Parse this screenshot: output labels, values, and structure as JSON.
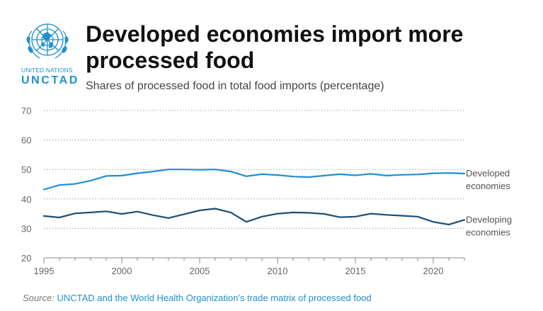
{
  "header": {
    "title": "Developed economies import more processed food",
    "subtitle": "Shares of processed food in total food imports (percentage)"
  },
  "logo": {
    "org_line": "UNITED NATIONS",
    "brand": "UNCTAD",
    "icon": "un-emblem-icon"
  },
  "source": {
    "label": "Source:",
    "text": "UNCTAD and the World Health Organization's trade matrix of processed food"
  },
  "colors": {
    "developed": "#1f8fd0",
    "developing": "#1b4f79",
    "grid": "#9a9a9a",
    "axis_text": "#666666"
  },
  "chart_data": {
    "type": "line",
    "title": "Developed economies import more processed food",
    "subtitle": "Shares of processed food in total food imports (percentage)",
    "xlabel": "",
    "ylabel": "",
    "x": [
      1995,
      1996,
      1997,
      1998,
      1999,
      2000,
      2001,
      2002,
      2003,
      2004,
      2005,
      2006,
      2007,
      2008,
      2009,
      2010,
      2011,
      2012,
      2013,
      2014,
      2015,
      2016,
      2017,
      2018,
      2019,
      2020,
      2021,
      2022
    ],
    "xticks": [
      1995,
      2000,
      2005,
      2010,
      2015,
      2020
    ],
    "xlim": [
      1995,
      2022
    ],
    "ylim": [
      20,
      70
    ],
    "yticks": [
      20,
      30,
      40,
      50,
      60,
      70
    ],
    "grid": true,
    "legend": "inline labels at line ends",
    "series": [
      {
        "name": "Developed economies",
        "label_lines": [
          "Developed",
          "economies"
        ],
        "color": "#1f8fd0",
        "values": [
          43.2,
          44.7,
          45.1,
          46.2,
          47.8,
          47.9,
          48.7,
          49.3,
          50.0,
          50.0,
          49.9,
          50.0,
          49.3,
          47.7,
          48.4,
          48.1,
          47.6,
          47.4,
          47.9,
          48.4,
          48.0,
          48.5,
          47.9,
          48.2,
          48.3,
          48.7,
          48.8,
          48.6
        ]
      },
      {
        "name": "Developing economies",
        "label_lines": [
          "Developing",
          "economies"
        ],
        "color": "#1b4f79",
        "values": [
          34.2,
          33.7,
          35.1,
          35.4,
          35.8,
          34.9,
          35.7,
          34.5,
          33.5,
          34.8,
          36.1,
          36.7,
          35.4,
          32.2,
          34.0,
          35.0,
          35.4,
          35.3,
          34.9,
          33.8,
          34.0,
          35.0,
          34.6,
          34.3,
          34.0,
          32.2,
          31.3,
          32.9
        ]
      }
    ]
  }
}
